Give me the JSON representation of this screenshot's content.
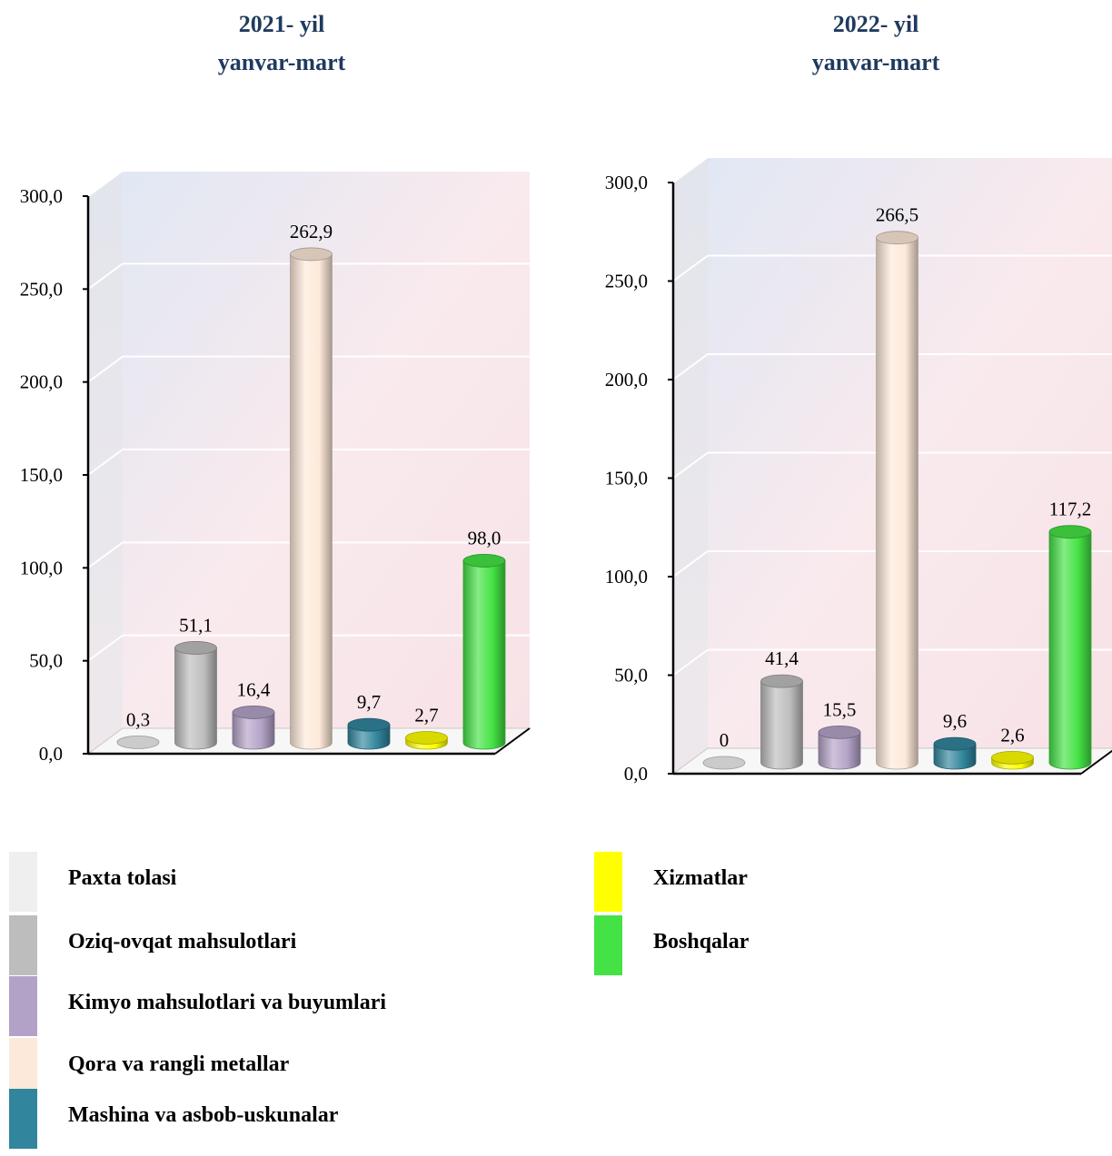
{
  "chart_data": [
    {
      "type": "bar",
      "title_line1": "2021- yil",
      "title_line2": "yanvar-mart",
      "categories": [
        "Paxta tolasi",
        "Oziq-ovqat mahsulotlari",
        "Kimyo mahsulotlari va buyumlari",
        "Qora va rangli metallar",
        "Mashina va asbob-uskunalar",
        "Xizmatlar",
        "Boshqalar"
      ],
      "values": [
        0.3,
        51.1,
        16.4,
        262.9,
        9.7,
        2.7,
        98.0
      ],
      "data_labels": [
        "0,3",
        "51,1",
        "16,4",
        "262,9",
        "9,7",
        "2,7",
        "98,0"
      ],
      "ylim": [
        0,
        300
      ],
      "y_ticks": [
        "0,0",
        "50,0",
        "100,0",
        "150,0",
        "200,0",
        "250,0",
        "300,0"
      ],
      "grid": true
    },
    {
      "type": "bar",
      "title_line1": "2022- yil",
      "title_line2": "yanvar-mart",
      "categories": [
        "Paxta tolasi",
        "Oziq-ovqat mahsulotlari",
        "Kimyo mahsulotlari va buyumlari",
        "Qora va rangli metallar",
        "Mashina va asbob-uskunalar",
        "Xizmatlar",
        "Boshqalar"
      ],
      "values": [
        0,
        41.4,
        15.5,
        266.5,
        9.6,
        2.6,
        117.2
      ],
      "data_labels": [
        "0",
        "41,4",
        "15,5",
        "266,5",
        "9,6",
        "2,6",
        "117,2"
      ],
      "ylim": [
        0,
        300
      ],
      "y_ticks": [
        "0,0",
        "50,0",
        "100,0",
        "150,0",
        "200,0",
        "250,0",
        "300,0"
      ],
      "grid": true
    }
  ],
  "legend": {
    "placement": "bottom",
    "items": [
      {
        "label": "Paxta tolasi",
        "color": "#efefef"
      },
      {
        "label": "Oziq-ovqat mahsulotlari",
        "color": "#bdbdbd"
      },
      {
        "label": "Kimyo mahsulotlari va buyumlari",
        "color": "#b3a2c7"
      },
      {
        "label": "Qora va rangli metallar",
        "color": "#fde9d9"
      },
      {
        "label": "Mashina va asbob-uskunalar",
        "color": "#31859c"
      },
      {
        "label": "Xizmatlar",
        "color": "#ffff00"
      },
      {
        "label": "Boshqalar",
        "color": "#44e244"
      }
    ]
  }
}
